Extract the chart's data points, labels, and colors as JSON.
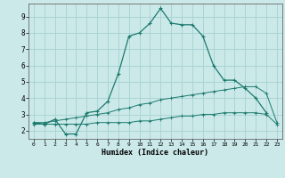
{
  "xlabel": "Humidex (Indice chaleur)",
  "xlim": [
    -0.5,
    23.5
  ],
  "ylim": [
    1.5,
    9.8
  ],
  "yticks": [
    2,
    3,
    4,
    5,
    6,
    7,
    8,
    9
  ],
  "xticks": [
    0,
    1,
    2,
    3,
    4,
    5,
    6,
    7,
    8,
    9,
    10,
    11,
    12,
    13,
    14,
    15,
    16,
    17,
    18,
    19,
    20,
    21,
    22,
    23
  ],
  "background_color": "#cce9e9",
  "grid_color": "#aad4d4",
  "line_color": "#1a7a6e",
  "line1_x": [
    0,
    1,
    2,
    3,
    4,
    5,
    6,
    7,
    8,
    9,
    10,
    11,
    12,
    13,
    14,
    15,
    16,
    17,
    18,
    19,
    20,
    21,
    22
  ],
  "line1_y": [
    2.5,
    2.4,
    2.7,
    1.8,
    1.8,
    3.1,
    3.2,
    3.8,
    5.5,
    7.8,
    8.0,
    8.6,
    9.5,
    8.6,
    8.5,
    8.5,
    7.8,
    6.0,
    5.1,
    5.1,
    4.6,
    4.0,
    3.1
  ],
  "line2_x": [
    0,
    1,
    2,
    3,
    4,
    5,
    6,
    7,
    8,
    9,
    10,
    11,
    12,
    13,
    14,
    15,
    16,
    17,
    18,
    19,
    20,
    21,
    22,
    23
  ],
  "line2_y": [
    2.5,
    2.5,
    2.6,
    2.7,
    2.8,
    2.9,
    3.0,
    3.1,
    3.3,
    3.4,
    3.6,
    3.7,
    3.9,
    4.0,
    4.1,
    4.2,
    4.3,
    4.4,
    4.5,
    4.6,
    4.7,
    4.7,
    4.3,
    2.5
  ],
  "line3_x": [
    0,
    1,
    2,
    3,
    4,
    5,
    6,
    7,
    8,
    9,
    10,
    11,
    12,
    13,
    14,
    15,
    16,
    17,
    18,
    19,
    20,
    21,
    22,
    23
  ],
  "line3_y": [
    2.4,
    2.4,
    2.4,
    2.4,
    2.4,
    2.4,
    2.5,
    2.5,
    2.5,
    2.5,
    2.6,
    2.6,
    2.7,
    2.8,
    2.9,
    2.9,
    3.0,
    3.0,
    3.1,
    3.1,
    3.1,
    3.1,
    3.0,
    2.4
  ]
}
